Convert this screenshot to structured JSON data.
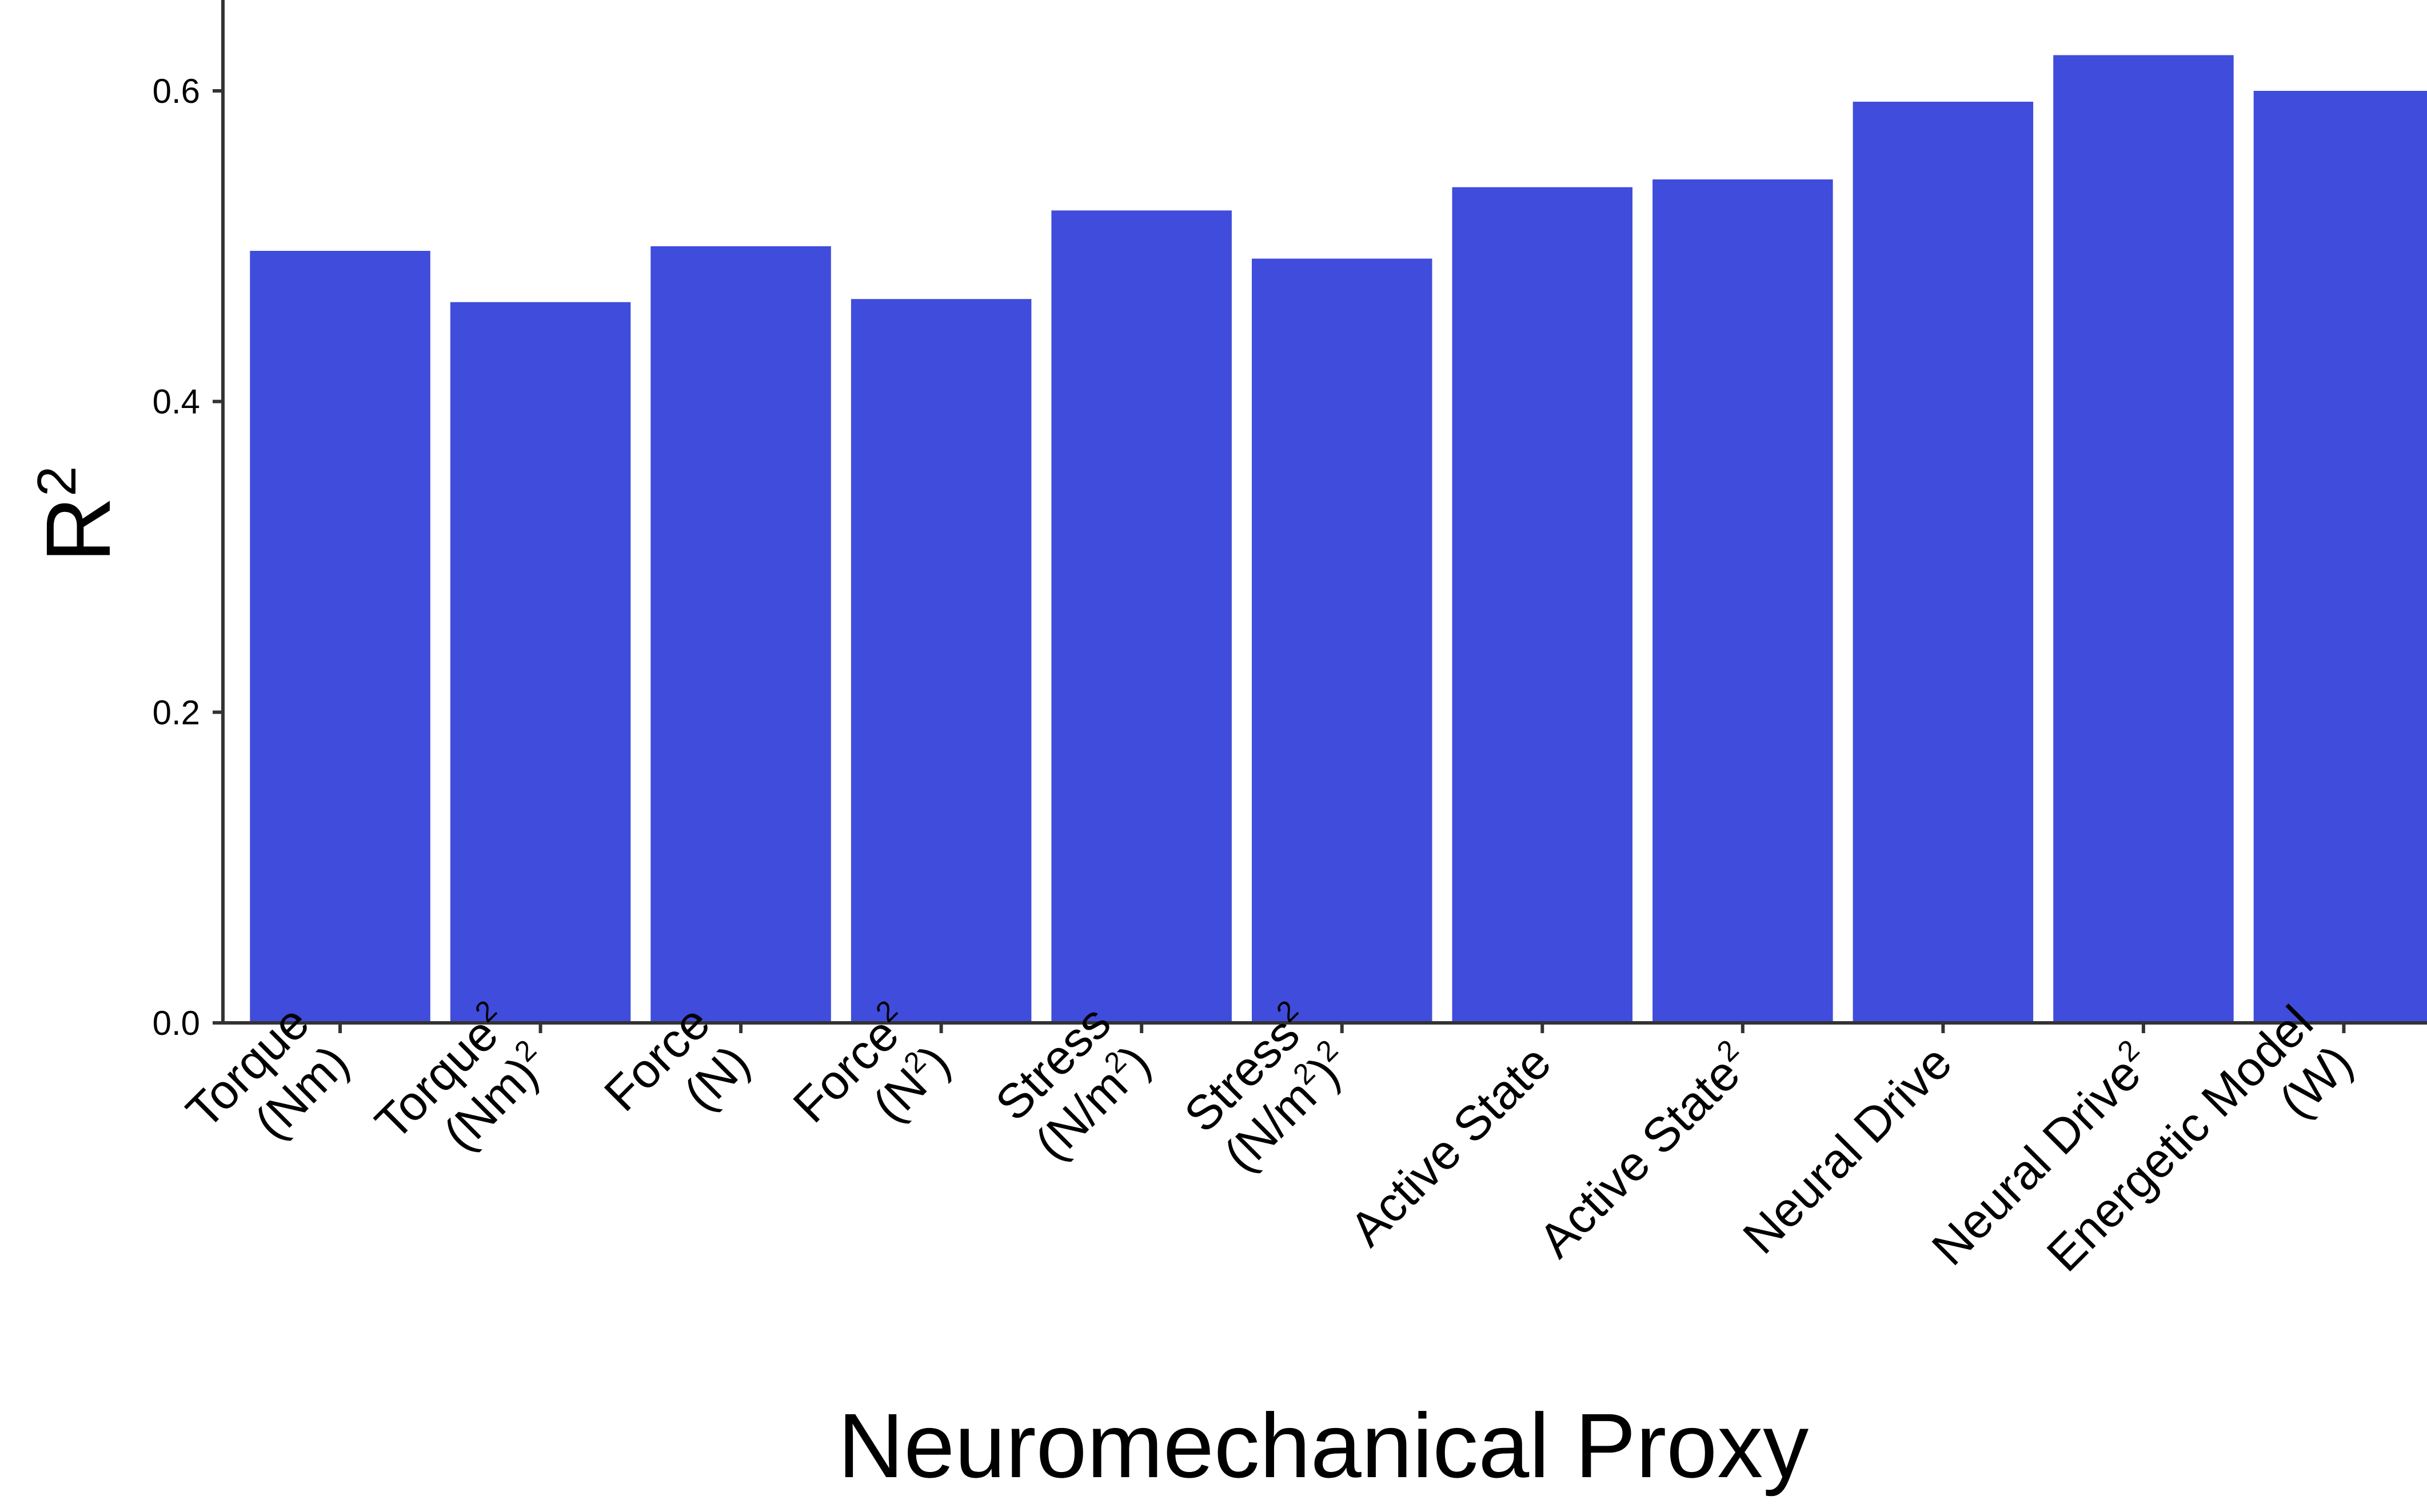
{
  "chart_data": {
    "type": "bar",
    "title": "",
    "xlabel": "Neuromechanical Proxy",
    "ylabel": {
      "base": "R",
      "sup": "2"
    },
    "ylim": [
      0,
      0.6585
    ],
    "yticks": [
      "0.0",
      "0.2",
      "0.4",
      "0.6"
    ],
    "ytick_values": [
      0,
      0.2,
      0.4,
      0.6
    ],
    "grid": false,
    "legend": "none",
    "bar_color": "#404CDB",
    "categories": [
      {
        "id": "torque",
        "label": [
          {
            "text": "Torque",
            "sup": ""
          },
          {
            "text": "(Nm)",
            "sup": ""
          }
        ]
      },
      {
        "id": "torque-sq",
        "label": [
          {
            "text": "Torque",
            "sup": "2"
          },
          {
            "text": "(Nm)",
            "sup": "2"
          }
        ]
      },
      {
        "id": "force",
        "label": [
          {
            "text": "Force",
            "sup": ""
          },
          {
            "text": "(N)",
            "sup": ""
          }
        ]
      },
      {
        "id": "force-sq",
        "label": [
          {
            "text": "Force",
            "sup": "2"
          },
          {
            "text": "(N",
            "sup": "2",
            "after": ")"
          }
        ]
      },
      {
        "id": "stress",
        "label": [
          {
            "text": "Stress",
            "sup": ""
          },
          {
            "text": "(N/m",
            "sup": "2",
            "after": ")"
          }
        ]
      },
      {
        "id": "stress-sq",
        "label": [
          {
            "text": "Stress",
            "sup": "2"
          },
          {
            "text": "(N/m",
            "sup": "2",
            "after": ")",
            "sup2": "2"
          }
        ]
      },
      {
        "id": "active-state",
        "label": [
          {
            "text": "Active State",
            "sup": ""
          }
        ]
      },
      {
        "id": "active-state-sq",
        "label": [
          {
            "text": "Active State",
            "sup": "2"
          }
        ]
      },
      {
        "id": "neural-drive",
        "label": [
          {
            "text": "Neural Drive",
            "sup": ""
          }
        ]
      },
      {
        "id": "neural-drive-sq",
        "label": [
          {
            "text": "Neural Drive",
            "sup": "2"
          }
        ]
      },
      {
        "id": "energetic-model",
        "label": [
          {
            "text": "Energetic Model",
            "sup": ""
          },
          {
            "text": "(W)",
            "sup": ""
          }
        ]
      }
    ],
    "values": [
      0.497,
      0.464,
      0.5,
      0.466,
      0.523,
      0.492,
      0.538,
      0.543,
      0.593,
      0.623,
      0.6
    ]
  }
}
